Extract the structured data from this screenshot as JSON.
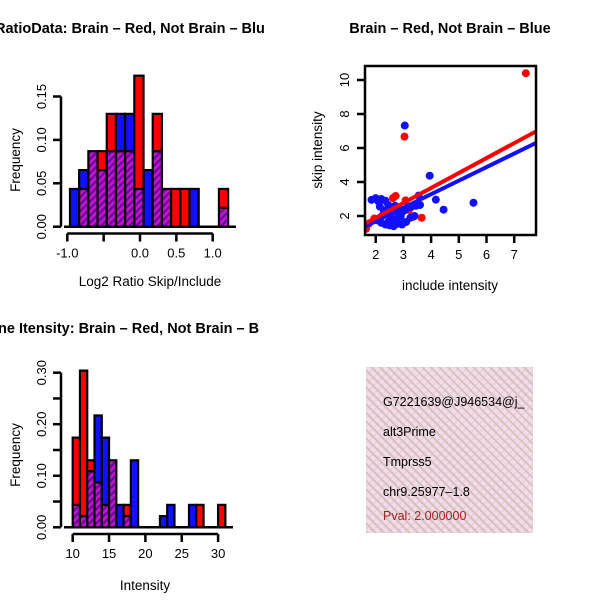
{
  "colors": {
    "red": "#ff0000",
    "blue": "#1010ff",
    "purple": "#c314cc",
    "purple_dark": "#650a99",
    "axis": "#000000",
    "pval": "#a12323",
    "pink_bg": "#f6dbec",
    "pink_dash": "#d3c3bd"
  },
  "panels": {
    "hist_ratio": {
      "title": "RatioData: Brain – Red, Not Brain – Blu",
      "xlabel": "Log2 Ratio Skip/Include",
      "ylabel": "Frequency"
    },
    "scatter": {
      "title": "Brain – Red, Not Brain – Blue",
      "xlabel": "include intensity",
      "ylabel": "skip intensity"
    },
    "hist_intensity": {
      "title": "ne Itensity: Brain – Red, Not Brain – B",
      "xlabel": "Intensity",
      "ylabel": "Frequency"
    },
    "info_box": {
      "gene_id": "G7221639@J946534@j_",
      "splice_type": "alt3Prime",
      "gene_name": "Tmprss5",
      "locus": "chr9.25977–1.8",
      "pval": "Pval: 2.000000"
    }
  },
  "chart_data": [
    {
      "id": "hist_ratio",
      "type": "bar",
      "subtype": "overlaid-histograms",
      "title": "RatioData: Brain – Red, Not Brain – Blu",
      "xlabel": "Log2 Ratio Skip/Include",
      "ylabel": "Frequency",
      "series": {
        "red": "Brain",
        "blue": "Not Brain",
        "overlap": "purple-hatch"
      },
      "xlim": [
        -1.05,
        1.33
      ],
      "ylim": [
        0,
        0.18
      ],
      "bin_width": 0.1265,
      "xticks": [
        -1.0,
        -0.5,
        0.0,
        0.5,
        1.0
      ],
      "xtick_labels": [
        "-1.0",
        "",
        "0.0",
        "0.5",
        "1.0"
      ],
      "yticks": [
        0,
        0.05,
        0.1,
        0.15
      ],
      "ytick_labels": [
        "0.00",
        "0.05",
        "0.10",
        "0.15"
      ],
      "bars": [
        {
          "x0": -0.963,
          "red": 0,
          "blue": 0.0435
        },
        {
          "x0": -0.837,
          "red": 0.0435,
          "blue": 0.0652
        },
        {
          "x0": -0.71,
          "red": 0.087,
          "blue": 0.087
        },
        {
          "x0": -0.584,
          "red": 0.087,
          "blue": 0.0652
        },
        {
          "x0": -0.457,
          "red": 0.13,
          "blue": 0.087
        },
        {
          "x0": -0.331,
          "red": 0.087,
          "blue": 0.13
        },
        {
          "x0": -0.204,
          "red": 0.087,
          "blue": 0.13
        },
        {
          "x0": -0.078,
          "red": 0.174,
          "blue": 0.0435
        },
        {
          "x0": 0.049,
          "red": 0,
          "blue": 0.0652
        },
        {
          "x0": 0.175,
          "red": 0.13,
          "blue": 0.087
        },
        {
          "x0": 0.302,
          "red": 0.0435,
          "blue": 0.0435
        },
        {
          "x0": 0.428,
          "red": 0.0435,
          "blue": 0
        },
        {
          "x0": 0.555,
          "red": 0.0435,
          "blue": 0
        },
        {
          "x0": 0.681,
          "red": 0,
          "blue": 0.0435
        },
        {
          "x0": 1.086,
          "red": 0.0435,
          "blue": 0.0217
        }
      ]
    },
    {
      "id": "scatter",
      "type": "scatter",
      "title": "Brain – Red, Not Brain – Blue",
      "xlabel": "include intensity",
      "ylabel": "skip intensity",
      "xlim": [
        1.61,
        7.79
      ],
      "ylim": [
        0.88,
        10.82
      ],
      "xticks": [
        2,
        3,
        4,
        5,
        6,
        7
      ],
      "xtick_labels": [
        "2",
        "3",
        "4",
        "5",
        "6",
        "7"
      ],
      "yticks": [
        2,
        4,
        6,
        8,
        10
      ],
      "ytick_labels": [
        "2",
        "4",
        "6",
        "8",
        "10"
      ],
      "red_points": [
        [
          7.42,
          10.4
        ],
        [
          3.04,
          6.67
        ],
        [
          2.72,
          3.18
        ],
        [
          3.08,
          2.92
        ],
        [
          2.62,
          3.05
        ],
        [
          3.2,
          2.35
        ],
        [
          3.66,
          1.9
        ],
        [
          1.75,
          1.55
        ],
        [
          1.95,
          1.85
        ],
        [
          2.4,
          2.1
        ],
        [
          3.35,
          1.95
        ],
        [
          1.65,
          1.25
        ]
      ],
      "blue_points": [
        [
          3.05,
          7.32
        ],
        [
          3.95,
          4.37
        ],
        [
          4.17,
          2.96
        ],
        [
          4.45,
          2.37
        ],
        [
          5.53,
          2.78
        ],
        [
          3.55,
          3.2
        ],
        [
          1.85,
          2.95
        ],
        [
          2.0,
          3.05
        ],
        [
          2.1,
          2.85
        ],
        [
          2.2,
          3.0
        ],
        [
          2.35,
          2.9
        ],
        [
          2.15,
          2.55
        ],
        [
          2.3,
          2.3
        ],
        [
          2.45,
          2.65
        ],
        [
          2.5,
          2.2
        ],
        [
          2.6,
          2.45
        ],
        [
          2.7,
          2.6
        ],
        [
          2.75,
          2.25
        ],
        [
          2.85,
          2.4
        ],
        [
          2.95,
          2.2
        ],
        [
          3.05,
          2.35
        ],
        [
          3.15,
          2.5
        ],
        [
          3.3,
          2.55
        ],
        [
          3.45,
          2.6
        ],
        [
          3.6,
          2.65
        ],
        [
          2.05,
          1.75
        ],
        [
          2.2,
          1.6
        ],
        [
          2.35,
          1.5
        ],
        [
          2.5,
          1.45
        ],
        [
          2.65,
          1.4
        ],
        [
          2.8,
          1.55
        ],
        [
          2.95,
          1.5
        ],
        [
          3.1,
          1.65
        ],
        [
          3.25,
          1.9
        ],
        [
          3.4,
          2.0
        ],
        [
          2.55,
          1.9
        ],
        [
          2.7,
          1.8
        ],
        [
          2.9,
          1.95
        ],
        [
          2.25,
          2.05
        ],
        [
          2.45,
          1.65
        ]
      ],
      "red_line": {
        "x1": 1.61,
        "y1": 1.55,
        "x2": 7.79,
        "y2": 6.98
      },
      "blue_line": {
        "x1": 1.61,
        "y1": 1.38,
        "x2": 7.79,
        "y2": 6.3
      }
    },
    {
      "id": "hist_intensity",
      "type": "bar",
      "subtype": "overlaid-histograms",
      "title": "ne Itensity: Brain – Red, Not Brain – B",
      "xlabel": "Intensity",
      "ylabel": "Frequency",
      "series": {
        "red": "Brain",
        "blue": "Not Brain",
        "overlap": "purple-hatch"
      },
      "xlim": [
        8.8,
        32.0
      ],
      "ylim": [
        0,
        0.31
      ],
      "bin_width": 1,
      "xticks": [
        10,
        15,
        20,
        25,
        30
      ],
      "xtick_labels": [
        "10",
        "15",
        "20",
        "25",
        "30"
      ],
      "yticks": [
        0,
        0.05,
        0.1,
        0.15,
        0.2,
        0.25,
        0.3
      ],
      "ytick_labels": [
        "0.00",
        "",
        "0.10",
        "",
        "0.20",
        "",
        "0.30"
      ],
      "bars": [
        {
          "x0": 10,
          "red": 0.174,
          "blue": 0.0435
        },
        {
          "x0": 11,
          "red": 0.304,
          "blue": 0.0217
        },
        {
          "x0": 12,
          "red": 0.13,
          "blue": 0.109
        },
        {
          "x0": 13,
          "red": 0.087,
          "blue": 0.217
        },
        {
          "x0": 14,
          "red": 0.0435,
          "blue": 0.174
        },
        {
          "x0": 15,
          "red": 0.13,
          "blue": 0.13
        },
        {
          "x0": 16,
          "red": 0,
          "blue": 0.0435
        },
        {
          "x0": 17,
          "red": 0.0435,
          "blue": 0.0217
        },
        {
          "x0": 18,
          "red": 0,
          "blue": 0.13
        },
        {
          "x0": 22,
          "red": 0,
          "blue": 0.0217
        },
        {
          "x0": 23,
          "red": 0,
          "blue": 0.0435
        },
        {
          "x0": 26,
          "red": 0,
          "blue": 0.0435
        },
        {
          "x0": 27,
          "red": 0.0435,
          "blue": 0
        },
        {
          "x0": 30,
          "red": 0.0435,
          "blue": 0
        }
      ]
    }
  ]
}
